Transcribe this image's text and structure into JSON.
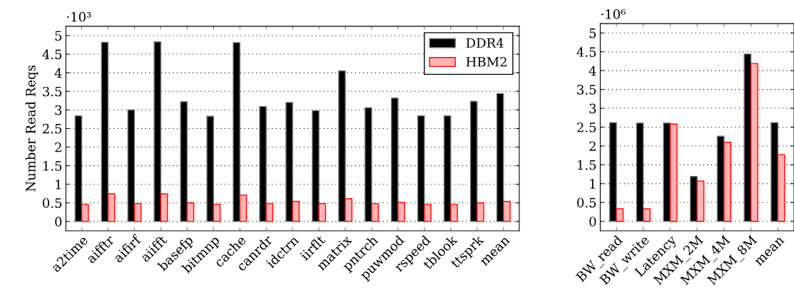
{
  "chart_data": [
    {
      "type": "bar",
      "ylabel": "Number Read Reqs",
      "categories": [
        "a2time",
        "aifftr",
        "aifirf",
        "aiifft",
        "basefp",
        "bitmnp",
        "cache",
        "canrdr",
        "idctrn",
        "iirflt",
        "matrix",
        "pntrch",
        "puwmod",
        "rspeed",
        "tblook",
        "ttsprk",
        "mean"
      ],
      "series": [
        {
          "name": "DDR4",
          "color": "#000000",
          "values": [
            2.84,
            4.82,
            3.0,
            4.83,
            3.22,
            2.83,
            4.81,
            3.09,
            3.2,
            2.98,
            4.05,
            3.06,
            3.32,
            2.84,
            2.84,
            3.23,
            3.44
          ]
        },
        {
          "name": "HBM2",
          "color": "#ffb3b3",
          "values": [
            0.46,
            0.74,
            0.48,
            0.74,
            0.5,
            0.46,
            0.71,
            0.48,
            0.54,
            0.48,
            0.61,
            0.48,
            0.51,
            0.46,
            0.46,
            0.5,
            0.54
          ]
        }
      ],
      "ylim": [
        -0.25,
        5.25
      ],
      "yticks": [
        0,
        0.5,
        1,
        1.5,
        2,
        2.5,
        3,
        3.5,
        4,
        4.5,
        5
      ],
      "annotations": [
        "·10³"
      ],
      "grid": "y",
      "legend": "top right"
    },
    {
      "type": "bar",
      "categories": [
        "BW_read",
        "BW_write",
        "Latency",
        "MXM_2M",
        "MXM_4M",
        "MXM_8M",
        "mean"
      ],
      "series": [
        {
          "color": "#000000",
          "values": [
            2.62,
            2.61,
            2.61,
            1.19,
            2.26,
            4.44,
            2.62
          ]
        },
        {
          "color": "#ffb3b3",
          "values": [
            0.33,
            0.33,
            2.58,
            1.07,
            2.1,
            4.19,
            1.77
          ]
        }
      ],
      "ylim": [
        -0.25,
        5.25
      ],
      "yticks": [
        0,
        0.5,
        1,
        1.5,
        2,
        2.5,
        3,
        3.5,
        4,
        4.5,
        5
      ],
      "annotations": [
        "·10⁶"
      ],
      "grid": "y"
    }
  ]
}
